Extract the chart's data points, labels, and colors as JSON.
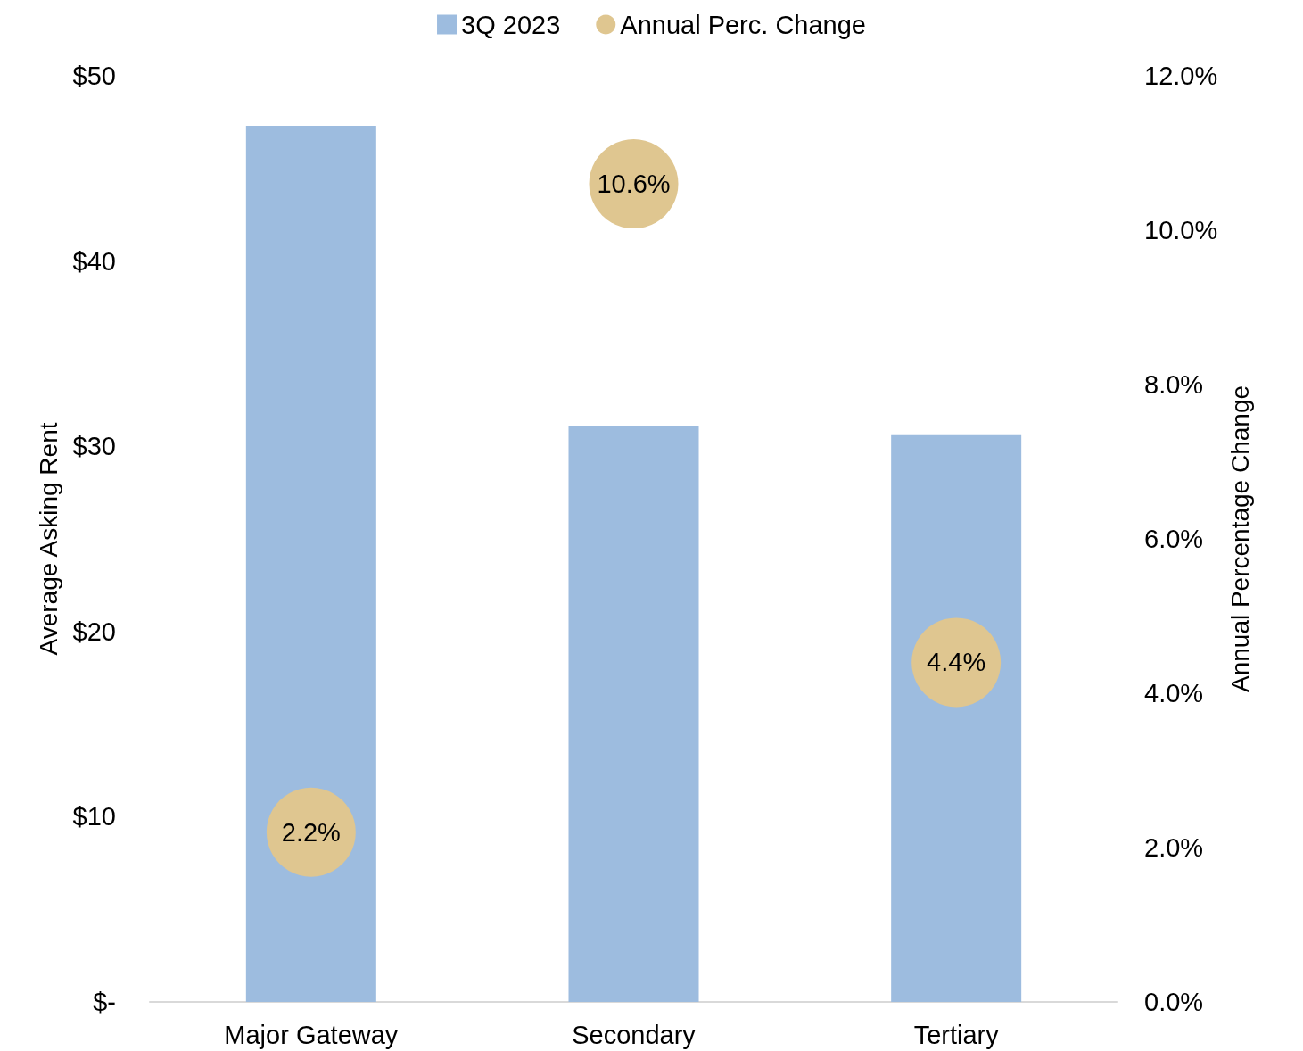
{
  "chart_data": {
    "type": "bar",
    "categories": [
      "Major Gateway",
      "Secondary",
      "Tertiary"
    ],
    "series": [
      {
        "name": "3Q 2023",
        "color": "#9dbcdf",
        "values": [
          47.3,
          31.1,
          30.6
        ]
      },
      {
        "name": "Annual Perc. Change",
        "type": "scatter",
        "axis": "y2",
        "marker": "circle",
        "color": "#dfc690",
        "values": [
          2.2,
          10.6,
          4.4
        ],
        "value_labels": [
          "2.2%",
          "10.6%",
          "4.4%"
        ]
      }
    ],
    "ylabel": "Average Asking Rent",
    "y2label": "Annual Percentage Change",
    "ylim": [
      0,
      50
    ],
    "yticks": [
      {
        "value": 0,
        "label": "$-"
      },
      {
        "value": 10,
        "label": "$10"
      },
      {
        "value": 20,
        "label": "$20"
      },
      {
        "value": 30,
        "label": "$30"
      },
      {
        "value": 40,
        "label": "$40"
      },
      {
        "value": 50,
        "label": "$50"
      }
    ],
    "y2lim": [
      0,
      12
    ],
    "y2ticks": [
      {
        "value": 0,
        "label": "0.0%"
      },
      {
        "value": 2,
        "label": "2.0%"
      },
      {
        "value": 4,
        "label": "4.0%"
      },
      {
        "value": 6,
        "label": "6.0%"
      },
      {
        "value": 8,
        "label": "8.0%"
      },
      {
        "value": 10,
        "label": "10.0%"
      },
      {
        "value": 12,
        "label": "12.0%"
      }
    ],
    "grid": false,
    "legend": "top"
  }
}
